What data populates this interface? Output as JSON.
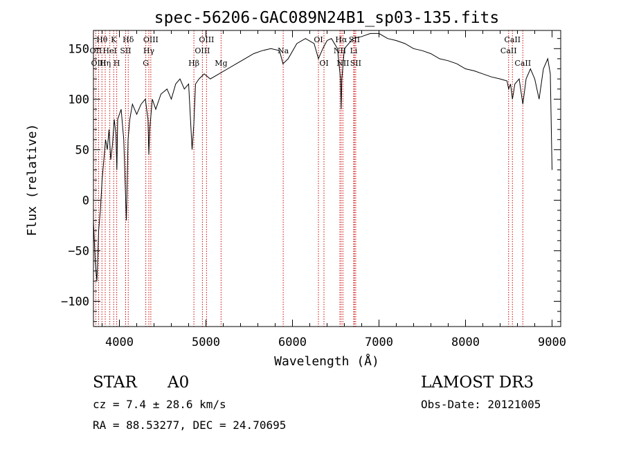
{
  "chart_data": {
    "type": "line",
    "title": "spec-56206-GAC089N24B1_sp03-135.fits",
    "xlabel": "Wavelength (Å)",
    "ylabel": "Flux (relative)",
    "xlim": [
      3700,
      9100
    ],
    "ylim": [
      -125,
      168
    ],
    "x_ticks": [
      4000,
      5000,
      6000,
      7000,
      8000,
      9000
    ],
    "y_ticks": [
      -100,
      -50,
      0,
      50,
      100,
      150
    ],
    "series": [
      {
        "name": "flux",
        "x": [
          3700,
          3720,
          3740,
          3760,
          3780,
          3800,
          3820,
          3840,
          3860,
          3880,
          3900,
          3920,
          3940,
          3960,
          3970,
          3980,
          4000,
          4020,
          4050,
          4080,
          4100,
          4120,
          4150,
          4200,
          4250,
          4300,
          4330,
          4340,
          4350,
          4380,
          4420,
          4480,
          4550,
          4600,
          4650,
          4700,
          4750,
          4800,
          4840,
          4860,
          4880,
          4920,
          4980,
          5050,
          5150,
          5250,
          5350,
          5450,
          5550,
          5650,
          5750,
          5850,
          5890,
          5950,
          6050,
          6150,
          6250,
          6300,
          6350,
          6400,
          6450,
          6520,
          6555,
          6563,
          6570,
          6600,
          6700,
          6800,
          6900,
          7000,
          7100,
          7200,
          7300,
          7400,
          7500,
          7600,
          7700,
          7800,
          7900,
          8000,
          8100,
          8200,
          8300,
          8400,
          8480,
          8498,
          8520,
          8542,
          8570,
          8620,
          8662,
          8700,
          8750,
          8800,
          8850,
          8900,
          8950,
          8980,
          9000
        ],
        "y": [
          -20,
          -60,
          -80,
          -30,
          -10,
          20,
          40,
          60,
          50,
          70,
          40,
          55,
          80,
          65,
          30,
          80,
          85,
          90,
          60,
          -20,
          60,
          80,
          95,
          85,
          95,
          100,
          80,
          45,
          70,
          100,
          90,
          105,
          110,
          100,
          115,
          120,
          110,
          115,
          50,
          75,
          115,
          120,
          125,
          120,
          125,
          130,
          135,
          140,
          145,
          148,
          150,
          148,
          135,
          140,
          155,
          160,
          155,
          140,
          150,
          158,
          160,
          150,
          120,
          90,
          120,
          150,
          160,
          162,
          165,
          165,
          160,
          158,
          155,
          150,
          148,
          145,
          140,
          138,
          135,
          130,
          128,
          125,
          122,
          120,
          118,
          110,
          115,
          100,
          115,
          120,
          95,
          120,
          130,
          120,
          100,
          130,
          140,
          125,
          30
        ]
      }
    ],
    "emission_lines": [
      {
        "label": "Hθ",
        "wavelength": 3798,
        "row": 1
      },
      {
        "label": "OII",
        "wavelength": 3727,
        "row": 2
      },
      {
        "label": "OIII",
        "wavelength": 3760,
        "row": 3
      },
      {
        "label": "Hη",
        "wavelength": 3836,
        "row": 3
      },
      {
        "label": "HeI",
        "wavelength": 3889,
        "row": 2
      },
      {
        "label": "K",
        "wavelength": 3934,
        "row": 1
      },
      {
        "label": "H",
        "wavelength": 3969,
        "row": 3
      },
      {
        "label": "SII",
        "wavelength": 4072,
        "row": 2
      },
      {
        "label": "Hδ",
        "wavelength": 4102,
        "row": 1
      },
      {
        "label": "OIII",
        "wavelength": 4363,
        "row": 1
      },
      {
        "label": "Hγ",
        "wavelength": 4340,
        "row": 2
      },
      {
        "label": "G",
        "wavelength": 4305,
        "row": 3
      },
      {
        "label": "Hβ",
        "wavelength": 4861,
        "row": 3
      },
      {
        "label": "OIII",
        "wavelength": 5007,
        "row": 1
      },
      {
        "label": "OIII",
        "wavelength": 4959,
        "row": 2
      },
      {
        "label": "Mg",
        "wavelength": 5175,
        "row": 3
      },
      {
        "label": "Na",
        "wavelength": 5893,
        "row": 2
      },
      {
        "label": "OI",
        "wavelength": 6300,
        "row": 1
      },
      {
        "label": "OI",
        "wavelength": 6364,
        "row": 3
      },
      {
        "label": "Hα",
        "wavelength": 6563,
        "row": 1
      },
      {
        "label": "NII",
        "wavelength": 6548,
        "row": 2
      },
      {
        "label": "NII",
        "wavelength": 6583,
        "row": 3
      },
      {
        "label": "SII",
        "wavelength": 6716,
        "row": 1
      },
      {
        "label": "Li",
        "wavelength": 6708,
        "row": 2
      },
      {
        "label": "SII",
        "wavelength": 6731,
        "row": 3
      },
      {
        "label": "CaII",
        "wavelength": 8542,
        "row": 1
      },
      {
        "label": "CaII",
        "wavelength": 8498,
        "row": 2
      },
      {
        "label": "CaII",
        "wavelength": 8662,
        "row": 3
      }
    ]
  },
  "footer": {
    "class_label": "STAR",
    "subclass": "A0",
    "survey": "LAMOST DR3",
    "redshift": "cz = 7.4 ± 28.6 km/s",
    "obs_date": "Obs-Date: 20121005",
    "coords": "RA =  88.53277, DEC =  24.70695"
  },
  "colors": {
    "line": "#000000",
    "marker": "#cc0000",
    "background": "#ffffff"
  }
}
